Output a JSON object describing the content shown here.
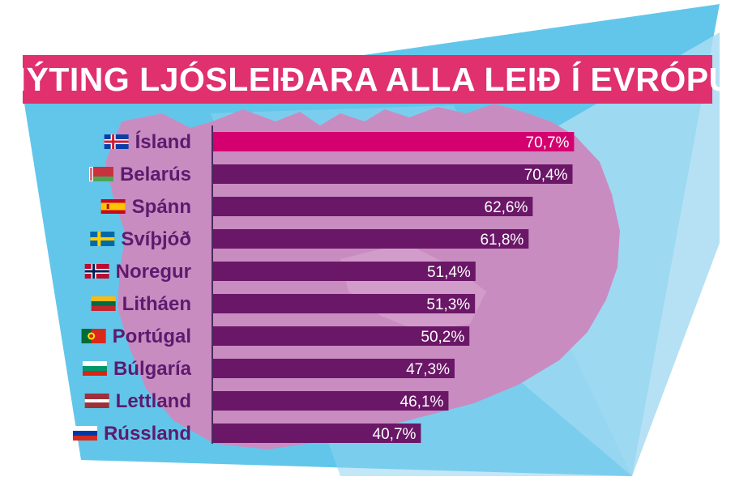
{
  "title": "NÝTING LJÓSLEIÐARA ALLA LEIÐ Í EVRÓPU",
  "colors": {
    "highlight_bar": "#d4006f",
    "bar": "#6b1767",
    "label": "#5e1a6e",
    "banner": "#e0306e",
    "sky": "#62c6ea",
    "sky_light": "#a9dcf3",
    "map": "#c98cc0"
  },
  "chart_data": {
    "type": "bar",
    "orientation": "horizontal",
    "title": "NÝTING LJÓSLEIÐARA ALLA LEIÐ Í EVRÓPU",
    "categories": [
      "Ísland",
      "Belarús",
      "Spánn",
      "Svíþjóð",
      "Noregur",
      "Litháen",
      "Portúgal",
      "Búlgaría",
      "Lettland",
      "Rússland"
    ],
    "values": [
      70.7,
      70.4,
      62.6,
      61.8,
      51.4,
      51.3,
      50.2,
      47.3,
      46.1,
      40.7
    ],
    "value_labels": [
      "70,7%",
      "70,4%",
      "62,6%",
      "61,8%",
      "51,4%",
      "51,3%",
      "50,2%",
      "47,3%",
      "46,1%",
      "40,7%"
    ],
    "flags": [
      "flag-iceland",
      "flag-belarus",
      "flag-spain",
      "flag-sweden",
      "flag-norway",
      "flag-lithuania",
      "flag-portugal",
      "flag-bulgaria",
      "flag-latvia",
      "flag-russia"
    ],
    "highlight_index": 0,
    "xlim": [
      0,
      100
    ],
    "grid": false,
    "legend": "none"
  }
}
